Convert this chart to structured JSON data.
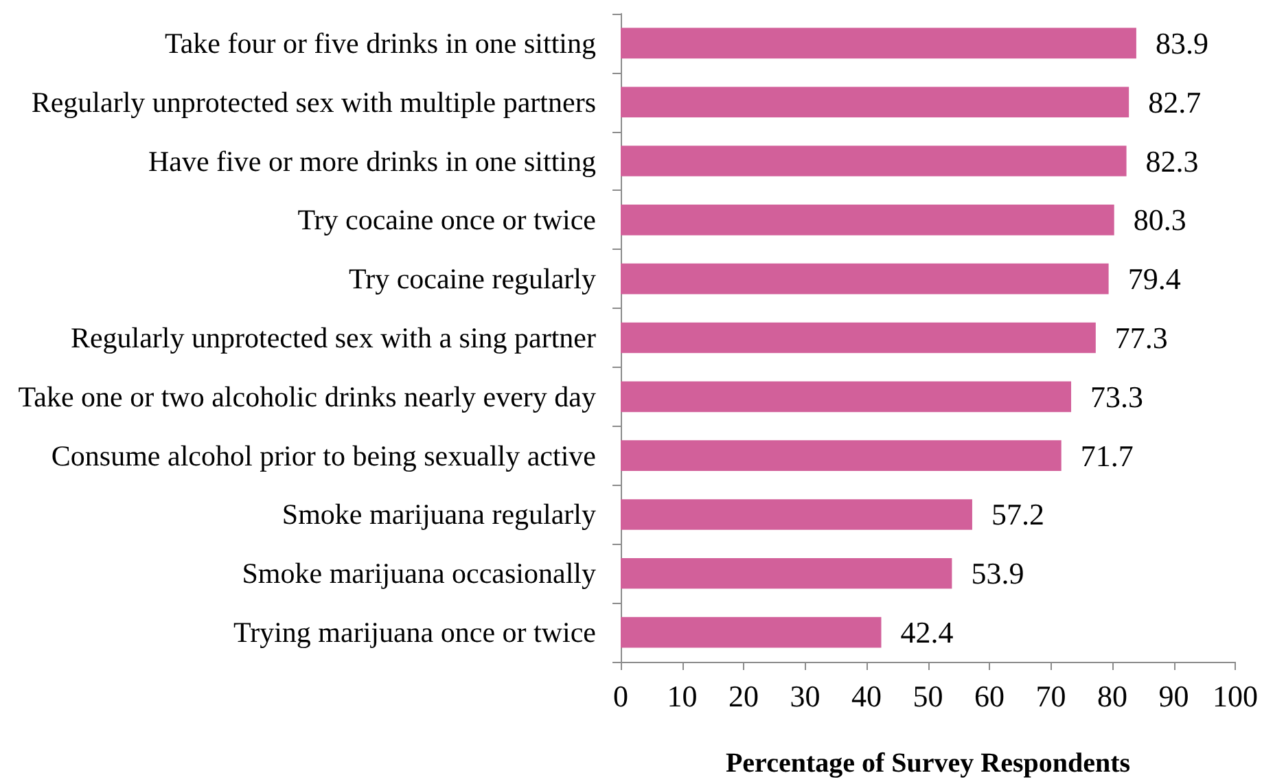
{
  "chart_data": {
    "type": "bar",
    "orientation": "horizontal",
    "xlabel": "Percentage of Survey Respondents",
    "categories": [
      "Take four or five drinks in one sitting",
      "Regularly unprotected sex with multiple partners",
      "Have five or more drinks in one sitting",
      "Try cocaine once or twice",
      "Try cocaine regularly",
      "Regularly unprotected sex with a sing partner",
      "Take one or two alcoholic drinks nearly every day",
      "Consume alcohol prior to being sexually active",
      "Smoke marijuana regularly",
      "Smoke marijuana occasionally",
      "Trying marijuana once or twice"
    ],
    "values": [
      83.9,
      82.7,
      82.3,
      80.3,
      79.4,
      77.3,
      73.3,
      71.7,
      57.2,
      53.9,
      42.4
    ],
    "color": "#d2609a",
    "xlim": [
      0,
      100
    ],
    "xticks": [
      0,
      10,
      20,
      30,
      40,
      50,
      60,
      70,
      80,
      90,
      100
    ],
    "data_labels": true,
    "grid": false
  }
}
